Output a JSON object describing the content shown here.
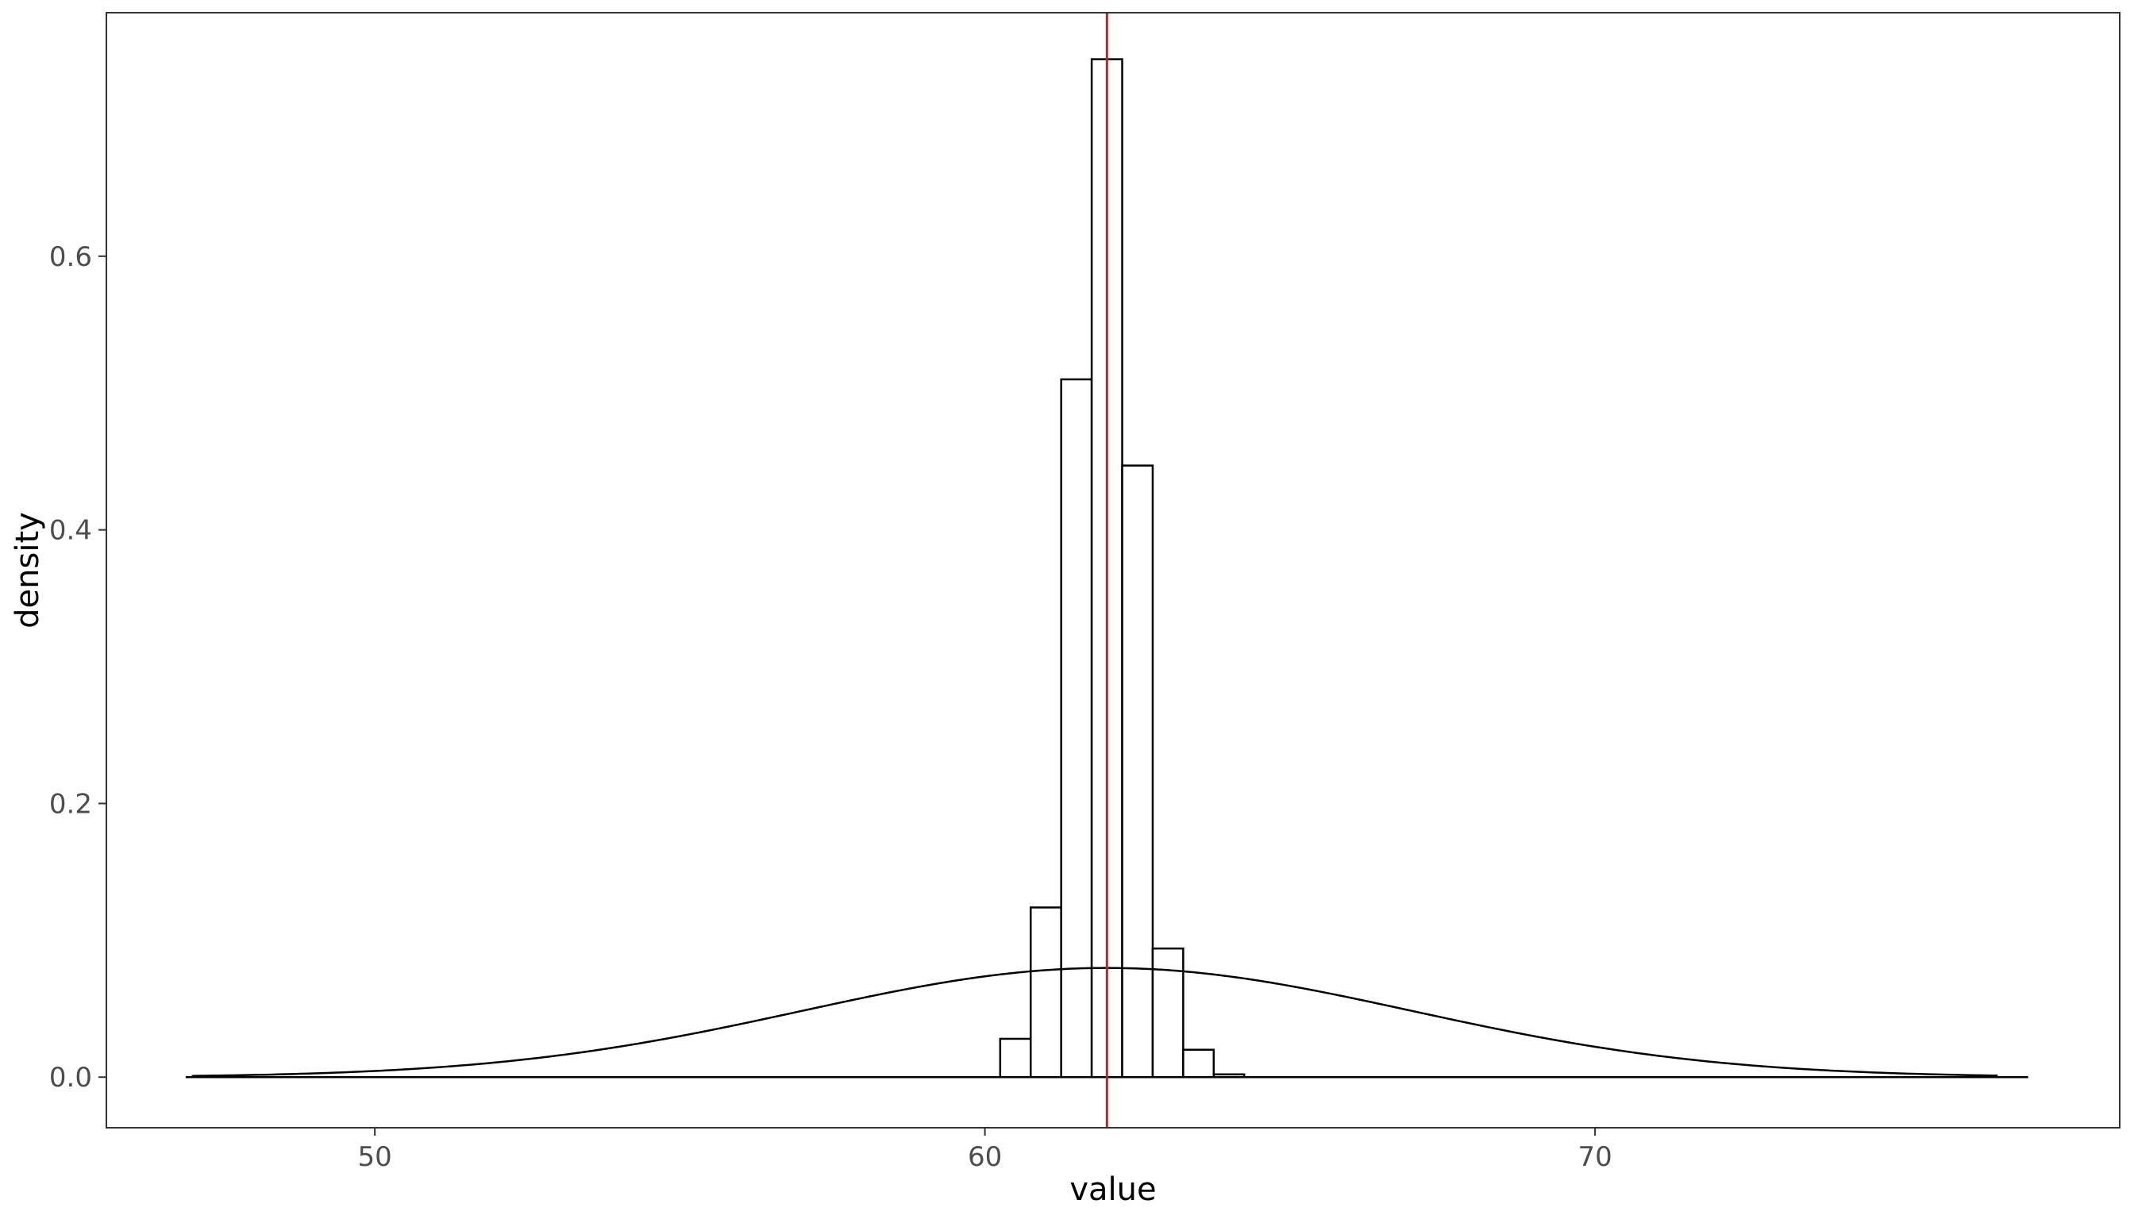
{
  "chart_data": {
    "type": "histogram",
    "title": "",
    "xlabel": "value",
    "ylabel": "density",
    "xlim": [
      45.6,
      78.6
    ],
    "ylim": [
      -0.037,
      0.778
    ],
    "x_ticks": [
      50,
      60,
      70
    ],
    "y_ticks": [
      0.0,
      0.2,
      0.4,
      0.6
    ],
    "x_tick_labels": [
      "50",
      "60",
      "70"
    ],
    "y_tick_labels": [
      "0.0",
      "0.2",
      "0.4",
      "0.6"
    ],
    "grid": false,
    "panel_border": true,
    "histogram": {
      "bin_width": 0.5,
      "bins": [
        {
          "x0": 60.25,
          "x1": 60.75,
          "density": 0.028
        },
        {
          "x0": 60.75,
          "x1": 61.25,
          "density": 0.124
        },
        {
          "x0": 61.25,
          "x1": 61.75,
          "density": 0.51
        },
        {
          "x0": 61.75,
          "x1": 62.25,
          "density": 0.744
        },
        {
          "x0": 62.25,
          "x1": 62.75,
          "density": 0.447
        },
        {
          "x0": 62.75,
          "x1": 63.25,
          "density": 0.094
        },
        {
          "x0": 63.25,
          "x1": 63.75,
          "density": 0.02
        },
        {
          "x0": 63.75,
          "x1": 64.25,
          "density": 0.002
        }
      ],
      "baseline_range": [
        46.9,
        77.1
      ],
      "stroke": "#000000",
      "fill": "#ffffff"
    },
    "density_curve": {
      "distribution": "normal",
      "mean": 62.0,
      "sd": 5.0,
      "x_range": [
        47.0,
        76.6
      ],
      "stroke": "#000000"
    },
    "vertical_line": {
      "x": 62.0,
      "color": "#d7191c"
    }
  }
}
